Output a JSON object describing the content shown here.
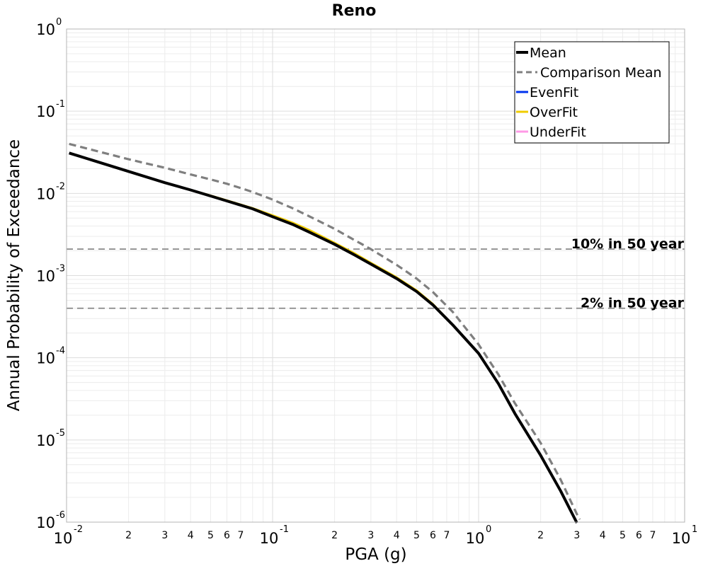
{
  "chart_data": {
    "type": "line",
    "title": "Reno",
    "xlabel": "PGA (g)",
    "ylabel": "Annual Probability of Exceedance",
    "x_scale": "log",
    "y_scale": "log",
    "xlim": [
      0.01,
      10
    ],
    "ylim": [
      1e-06,
      1
    ],
    "grid": true,
    "legend_position": "top-right",
    "x_major_ticks": [
      {
        "value": 0.01,
        "base": "10",
        "exp": "-2"
      },
      {
        "value": 0.1,
        "base": "10",
        "exp": "-1"
      },
      {
        "value": 1,
        "base": "10",
        "exp": "0"
      },
      {
        "value": 10,
        "base": "10",
        "exp": "1"
      }
    ],
    "x_minor_tick_labels": [
      "2",
      "3",
      "4",
      "5",
      "6",
      "7"
    ],
    "y_major_ticks": [
      {
        "value": 1,
        "base": "10",
        "exp": "0"
      },
      {
        "value": 0.1,
        "base": "10",
        "exp": "-1"
      },
      {
        "value": 0.01,
        "base": "10",
        "exp": "-2"
      },
      {
        "value": 0.001,
        "base": "10",
        "exp": "-3"
      },
      {
        "value": 0.0001,
        "base": "10",
        "exp": "-4"
      },
      {
        "value": 1e-05,
        "base": "10",
        "exp": "-5"
      },
      {
        "value": 1e-06,
        "base": "10",
        "exp": "-6"
      }
    ],
    "series": [
      {
        "name": "UnderFit",
        "color": "#ff99e6",
        "style": "solid",
        "x": [
          0.0103,
          0.02,
          0.03,
          0.04,
          0.05,
          0.06,
          0.07,
          0.08,
          0.1,
          0.125,
          0.15,
          0.2,
          0.25,
          0.3,
          0.4,
          0.5,
          0.6,
          0.75,
          1.0,
          1.25,
          1.5,
          2.0,
          2.5,
          3.0
        ],
        "y": [
          0.031,
          0.0185,
          0.0135,
          0.011,
          0.0093,
          0.0081,
          0.0072,
          0.0065,
          0.0052,
          0.0042,
          0.0034,
          0.0024,
          0.00178,
          0.00138,
          0.00092,
          0.00064,
          0.00044,
          0.00025,
          0.000113,
          4.8e-05,
          2.1e-05,
          6.5e-06,
          2.4e-06,
          9.8e-07
        ]
      },
      {
        "name": "OverFit",
        "color": "#f0cc00",
        "style": "solid",
        "x": [
          0.0103,
          0.02,
          0.03,
          0.04,
          0.05,
          0.06,
          0.07,
          0.08,
          0.1,
          0.125,
          0.15,
          0.2,
          0.25,
          0.3,
          0.4,
          0.5,
          0.6,
          0.75,
          1.0,
          1.25,
          1.5,
          2.0,
          2.5,
          3.0
        ],
        "y": [
          0.031,
          0.0185,
          0.0135,
          0.011,
          0.0094,
          0.0082,
          0.0073,
          0.0066,
          0.0054,
          0.0044,
          0.0036,
          0.0025,
          0.00186,
          0.00143,
          0.00095,
          0.00066,
          0.00045,
          0.00025,
          0.000113,
          4.8e-05,
          2.1e-05,
          6.5e-06,
          2.4e-06,
          9.8e-07
        ]
      },
      {
        "name": "EvenFit",
        "color": "#0033ee",
        "style": "solid",
        "x": [
          0.0103,
          0.02,
          0.03,
          0.04,
          0.05,
          0.06,
          0.07,
          0.08,
          0.1,
          0.125,
          0.15,
          0.2,
          0.25,
          0.3,
          0.4,
          0.5,
          0.6,
          0.75,
          1.0,
          1.25,
          1.5,
          2.0,
          2.5,
          3.0
        ],
        "y": [
          0.031,
          0.0185,
          0.0135,
          0.011,
          0.0093,
          0.0081,
          0.0072,
          0.0065,
          0.0052,
          0.0042,
          0.0034,
          0.0024,
          0.00178,
          0.00138,
          0.00092,
          0.00064,
          0.00044,
          0.00025,
          0.000113,
          4.8e-05,
          2.1e-05,
          6.5e-06,
          2.4e-06,
          9.8e-07
        ]
      },
      {
        "name": "Comparison Mean",
        "color": "#7f7f7f",
        "style": "dashed",
        "x": [
          0.0103,
          0.02,
          0.03,
          0.04,
          0.05,
          0.06,
          0.07,
          0.08,
          0.1,
          0.125,
          0.15,
          0.2,
          0.25,
          0.3,
          0.4,
          0.5,
          0.6,
          0.75,
          1.0,
          1.25,
          1.5,
          2.0,
          2.5,
          3.0,
          3.1
        ],
        "y": [
          0.04,
          0.026,
          0.0205,
          0.017,
          0.0148,
          0.0131,
          0.0116,
          0.0104,
          0.0084,
          0.0066,
          0.0053,
          0.0037,
          0.0027,
          0.0021,
          0.00135,
          0.00092,
          0.00063,
          0.00036,
          0.000145,
          6.2e-05,
          2.8e-05,
          9.2e-06,
          3.3e-06,
          1.25e-06,
          1.08e-06
        ]
      },
      {
        "name": "Mean",
        "color": "#000000",
        "style": "solid",
        "x": [
          0.0103,
          0.02,
          0.03,
          0.04,
          0.05,
          0.06,
          0.07,
          0.08,
          0.1,
          0.125,
          0.15,
          0.2,
          0.25,
          0.3,
          0.4,
          0.5,
          0.6,
          0.75,
          1.0,
          1.25,
          1.5,
          2.0,
          2.5,
          3.0
        ],
        "y": [
          0.031,
          0.0185,
          0.0135,
          0.011,
          0.0093,
          0.0081,
          0.0072,
          0.0065,
          0.0052,
          0.0042,
          0.0034,
          0.0024,
          0.00178,
          0.00138,
          0.00092,
          0.00064,
          0.00044,
          0.00025,
          0.000113,
          4.8e-05,
          2.1e-05,
          6.5e-06,
          2.4e-06,
          9.8e-07
        ]
      }
    ],
    "legend_order": [
      "Mean",
      "Comparison Mean",
      "EvenFit",
      "OverFit",
      "UnderFit"
    ],
    "reference_lines": [
      {
        "label": "10% in 50 year",
        "y": 0.0021,
        "color": "#7f7f7f",
        "style": "dashed"
      },
      {
        "label": "2% in 50 year",
        "y": 0.0004,
        "color": "#7f7f7f",
        "style": "dashed"
      }
    ]
  }
}
